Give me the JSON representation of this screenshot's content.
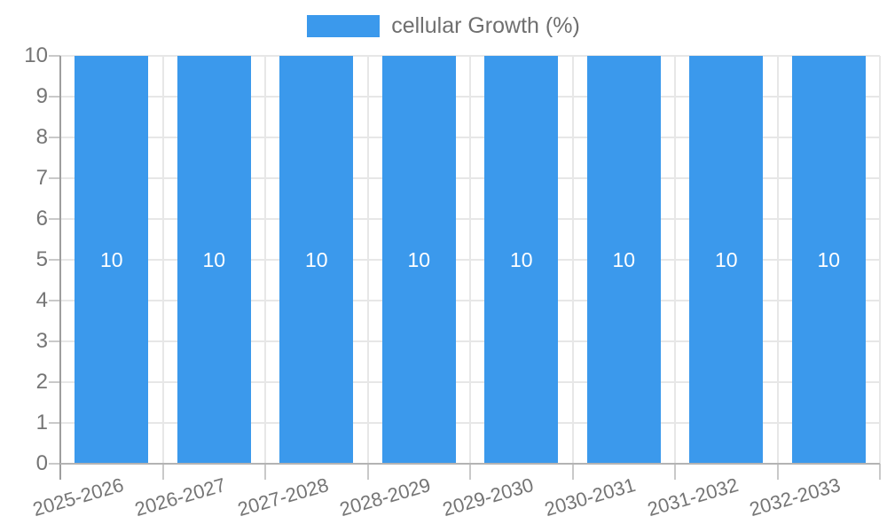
{
  "chart_data": {
    "type": "bar",
    "title": "",
    "xlabel": "",
    "ylabel": "",
    "categories": [
      "2025-2026",
      "2026-2027",
      "2027-2028",
      "2028-2029",
      "2029-2030",
      "2030-2031",
      "2031-2032",
      "2032-2033"
    ],
    "series": [
      {
        "name": "cellular Growth (%)",
        "values": [
          10,
          10,
          10,
          10,
          10,
          10,
          10,
          10
        ]
      }
    ],
    "bar_value_labels": [
      "10",
      "10",
      "10",
      "10",
      "10",
      "10",
      "10",
      "10"
    ],
    "y_ticks": [
      0,
      1,
      2,
      3,
      4,
      5,
      6,
      7,
      8,
      9,
      10
    ],
    "ylim": [
      0,
      10
    ],
    "grid": true,
    "legend_position": "top",
    "colors": {
      "bar": "#3b99ec",
      "bar_label": "#ffffff",
      "axis_text": "#757575",
      "legend_text": "#6f6f6f",
      "gridline": "#e7e7e7",
      "axis_line": "#9e9e9e",
      "baseline": "#b3b3b3",
      "tick": "#c9c9c9",
      "background": "#ffffff"
    }
  }
}
